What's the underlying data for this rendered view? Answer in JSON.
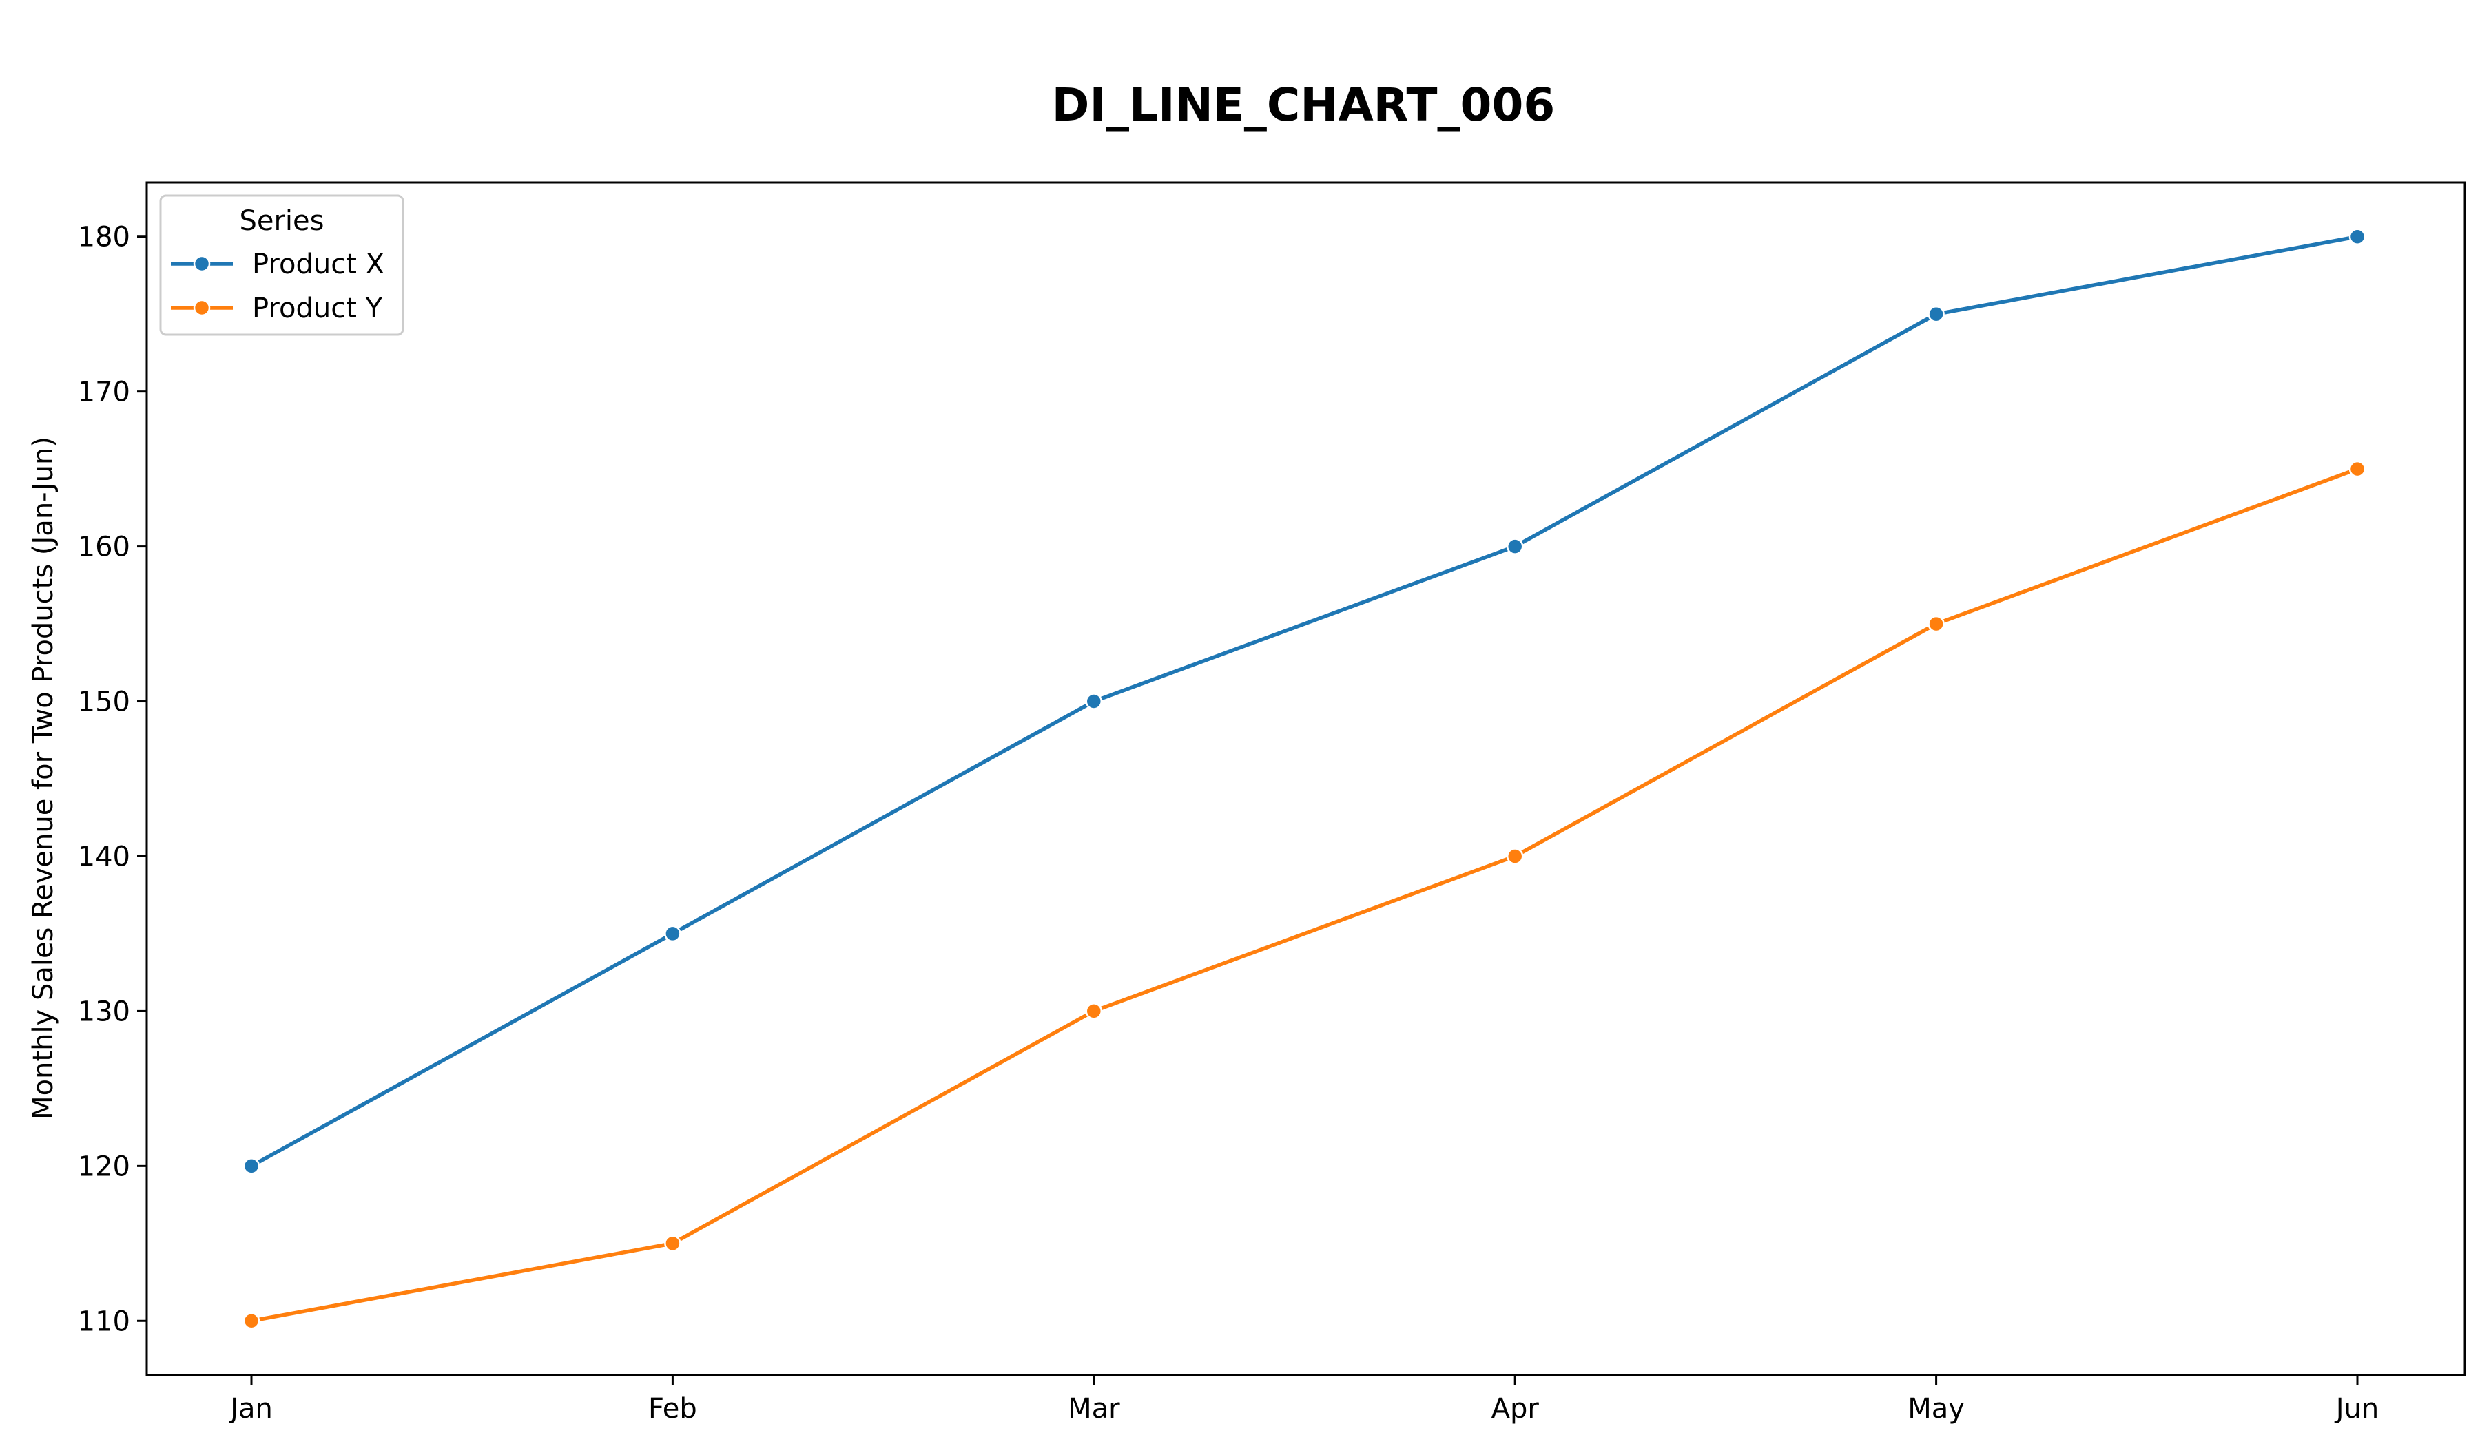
{
  "chart_data": {
    "type": "line",
    "title": "DI_LINE_CHART_006",
    "xlabel": "",
    "ylabel": "Monthly Sales Revenue for Two Products (Jan-Jun)",
    "categories": [
      "Jan",
      "Feb",
      "Mar",
      "Apr",
      "May",
      "Jun"
    ],
    "series": [
      {
        "name": "Product X",
        "color": "#1f77b4",
        "values": [
          120,
          135,
          150,
          160,
          175,
          180
        ]
      },
      {
        "name": "Product Y",
        "color": "#ff7f0e",
        "values": [
          110,
          115,
          130,
          140,
          155,
          165
        ]
      }
    ],
    "ylim": [
      106.5,
      183.5
    ],
    "yticks": [
      110,
      120,
      130,
      140,
      150,
      160,
      170,
      180
    ],
    "grid": false,
    "legend": {
      "title": "Series",
      "position": "top-left"
    }
  }
}
